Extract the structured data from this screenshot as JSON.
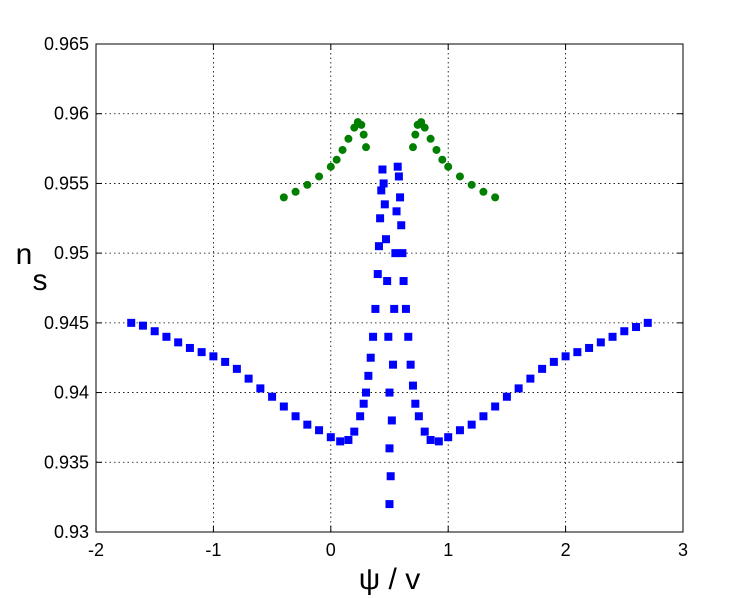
{
  "chart_data": {
    "type": "scatter",
    "title": "",
    "xlabel": "ψ / v",
    "ylabel_main": "n",
    "ylabel_sub": "s",
    "xlim": [
      -2,
      3
    ],
    "ylim": [
      0.93,
      0.965
    ],
    "grid": true,
    "x_ticks": [
      -2,
      -1,
      0,
      1,
      2,
      3
    ],
    "y_ticks": [
      0.93,
      0.935,
      0.94,
      0.945,
      0.95,
      0.955,
      0.96,
      0.965
    ],
    "x_tick_labels": [
      "-2",
      "-1",
      "0",
      "1",
      "2",
      "3"
    ],
    "y_tick_labels": [
      "0.93",
      "0.935",
      "0.94",
      "0.945",
      "0.95",
      "0.955",
      "0.96",
      "0.965"
    ],
    "series": [
      {
        "color": "#0000ff",
        "marker": "square",
        "points": [
          [
            -1.7,
            0.945
          ],
          [
            -1.6,
            0.9448
          ],
          [
            -1.5,
            0.9444
          ],
          [
            -1.4,
            0.944
          ],
          [
            -1.3,
            0.9436
          ],
          [
            -1.2,
            0.9432
          ],
          [
            -1.1,
            0.9429
          ],
          [
            -1.0,
            0.9426
          ],
          [
            -0.9,
            0.9422
          ],
          [
            -0.8,
            0.9417
          ],
          [
            -0.7,
            0.941
          ],
          [
            -0.6,
            0.9403
          ],
          [
            -0.5,
            0.9397
          ],
          [
            -0.4,
            0.939
          ],
          [
            -0.3,
            0.9383
          ],
          [
            -0.2,
            0.9377
          ],
          [
            -0.1,
            0.9373
          ],
          [
            0.0,
            0.9368
          ],
          [
            0.08,
            0.9365
          ],
          [
            0.15,
            0.9366
          ],
          [
            0.2,
            0.9372
          ],
          [
            0.25,
            0.9383
          ],
          [
            0.28,
            0.9392
          ],
          [
            0.3,
            0.94
          ],
          [
            0.32,
            0.9412
          ],
          [
            0.34,
            0.9425
          ],
          [
            0.36,
            0.944
          ],
          [
            0.38,
            0.946
          ],
          [
            0.4,
            0.9485
          ],
          [
            0.41,
            0.9505
          ],
          [
            0.42,
            0.9525
          ],
          [
            0.43,
            0.9545
          ],
          [
            0.44,
            0.956
          ],
          [
            0.45,
            0.955
          ],
          [
            0.46,
            0.9535
          ],
          [
            0.47,
            0.951
          ],
          [
            0.48,
            0.948
          ],
          [
            0.49,
            0.944
          ],
          [
            0.5,
            0.94
          ],
          [
            0.5,
            0.936
          ],
          [
            0.5,
            0.932
          ],
          [
            0.51,
            0.934
          ],
          [
            0.52,
            0.938
          ],
          [
            0.53,
            0.942
          ],
          [
            0.54,
            0.946
          ],
          [
            0.55,
            0.95
          ],
          [
            0.56,
            0.953
          ],
          [
            0.57,
            0.9562
          ],
          [
            0.58,
            0.9555
          ],
          [
            0.59,
            0.954
          ],
          [
            0.6,
            0.952
          ],
          [
            0.61,
            0.95
          ],
          [
            0.62,
            0.948
          ],
          [
            0.64,
            0.946
          ],
          [
            0.66,
            0.944
          ],
          [
            0.68,
            0.942
          ],
          [
            0.7,
            0.9405
          ],
          [
            0.72,
            0.9392
          ],
          [
            0.75,
            0.9383
          ],
          [
            0.8,
            0.9372
          ],
          [
            0.85,
            0.9366
          ],
          [
            0.92,
            0.9365
          ],
          [
            1.0,
            0.9368
          ],
          [
            1.1,
            0.9373
          ],
          [
            1.2,
            0.9377
          ],
          [
            1.3,
            0.9383
          ],
          [
            1.4,
            0.939
          ],
          [
            1.5,
            0.9397
          ],
          [
            1.6,
            0.9403
          ],
          [
            1.7,
            0.941
          ],
          [
            1.8,
            0.9417
          ],
          [
            1.9,
            0.9422
          ],
          [
            2.0,
            0.9426
          ],
          [
            2.1,
            0.9429
          ],
          [
            2.2,
            0.9432
          ],
          [
            2.3,
            0.9436
          ],
          [
            2.4,
            0.944
          ],
          [
            2.5,
            0.9444
          ],
          [
            2.6,
            0.9447
          ],
          [
            2.7,
            0.945
          ]
        ]
      },
      {
        "color": "#007f00",
        "marker": "circle",
        "points": [
          [
            -0.4,
            0.954
          ],
          [
            -0.3,
            0.9544
          ],
          [
            -0.2,
            0.9549
          ],
          [
            -0.1,
            0.9555
          ],
          [
            0.0,
            0.9562
          ],
          [
            0.05,
            0.9567
          ],
          [
            0.1,
            0.9574
          ],
          [
            0.15,
            0.9582
          ],
          [
            0.2,
            0.959
          ],
          [
            0.23,
            0.9594
          ],
          [
            0.26,
            0.9592
          ],
          [
            0.28,
            0.9585
          ],
          [
            0.3,
            0.9576
          ],
          [
            0.7,
            0.9576
          ],
          [
            0.72,
            0.9585
          ],
          [
            0.74,
            0.9592
          ],
          [
            0.77,
            0.9594
          ],
          [
            0.8,
            0.959
          ],
          [
            0.85,
            0.9582
          ],
          [
            0.9,
            0.9574
          ],
          [
            0.95,
            0.9567
          ],
          [
            1.0,
            0.9562
          ],
          [
            1.1,
            0.9555
          ],
          [
            1.2,
            0.9549
          ],
          [
            1.3,
            0.9544
          ],
          [
            1.4,
            0.954
          ]
        ]
      }
    ]
  }
}
